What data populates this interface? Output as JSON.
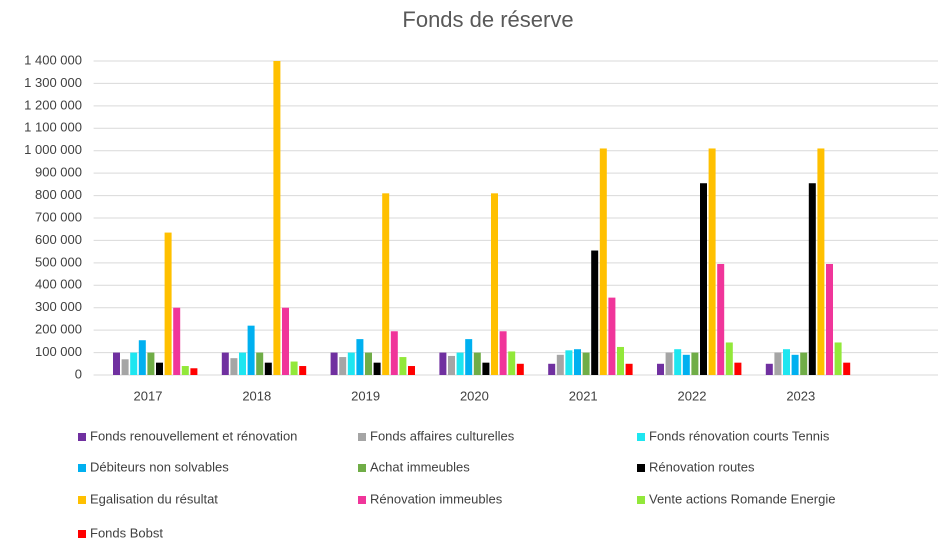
{
  "chart_data": {
    "type": "bar",
    "title": "Fonds de réserve",
    "categories": [
      "2017",
      "2018",
      "2019",
      "2020",
      "2021",
      "2022",
      "2023"
    ],
    "series": [
      {
        "name": "Fonds renouvellement et rénovation",
        "color": "#7030a0",
        "values": [
          100000,
          100000,
          100000,
          100000,
          50000,
          50000,
          50000
        ]
      },
      {
        "name": "Fonds affaires culturelles",
        "color": "#a5a5a5",
        "values": [
          70000,
          75000,
          80000,
          85000,
          90000,
          100000,
          100000
        ]
      },
      {
        "name": "Fonds rénovation courts Tennis",
        "color": "#1ee6f0",
        "values": [
          100000,
          100000,
          100000,
          100000,
          110000,
          115000,
          115000
        ]
      },
      {
        "name": "Débiteurs non solvables",
        "color": "#00b0f0",
        "values": [
          155000,
          220000,
          160000,
          160000,
          115000,
          90000,
          90000
        ]
      },
      {
        "name": "Achat immeubles",
        "color": "#70ad47",
        "values": [
          100000,
          100000,
          100000,
          100000,
          100000,
          100000,
          100000
        ]
      },
      {
        "name": "Rénovation routes",
        "color": "#000000",
        "values": [
          55000,
          55000,
          55000,
          55000,
          555000,
          855000,
          855000
        ]
      },
      {
        "name": "Egalisation du résultat",
        "color": "#ffc000",
        "values": [
          635000,
          1400000,
          810000,
          810000,
          1010000,
          1010000,
          1010000
        ]
      },
      {
        "name": "Rénovation immeubles",
        "color": "#f0359a",
        "values": [
          300000,
          300000,
          195000,
          195000,
          345000,
          495000,
          495000
        ]
      },
      {
        "name": "Vente actions Romande Energie",
        "color": "#92e83a",
        "values": [
          40000,
          60000,
          80000,
          105000,
          125000,
          145000,
          145000
        ]
      },
      {
        "name": "Fonds Bobst",
        "color": "#ff0000",
        "values": [
          30000,
          40000,
          40000,
          50000,
          50000,
          55000,
          55000
        ]
      }
    ],
    "ylim": [
      0,
      1400000
    ],
    "yticks": [
      0,
      {
        "value": 100000,
        "label": "100 000"
      },
      {
        "value": 200000,
        "label": "200 000"
      },
      {
        "value": 300000,
        "label": "300 000"
      },
      {
        "value": 400000,
        "label": "400 000"
      },
      {
        "value": 500000,
        "label": "500 000"
      },
      {
        "value": 600000,
        "label": "600 000"
      },
      {
        "value": 700000,
        "label": "700 000"
      },
      {
        "value": 800000,
        "label": "800 000"
      },
      {
        "value": 900000,
        "label": "900 000"
      },
      {
        "value": 1000000,
        "label": "1 000 000"
      },
      {
        "value": 1100000,
        "label": "1 100 000"
      },
      {
        "value": 1200000,
        "label": "1 200 000"
      },
      {
        "value": 1300000,
        "label": "1 300 000"
      },
      {
        "value": 1400000,
        "label": "1 400 000"
      }
    ],
    "grid": true,
    "legend": "bottom"
  }
}
